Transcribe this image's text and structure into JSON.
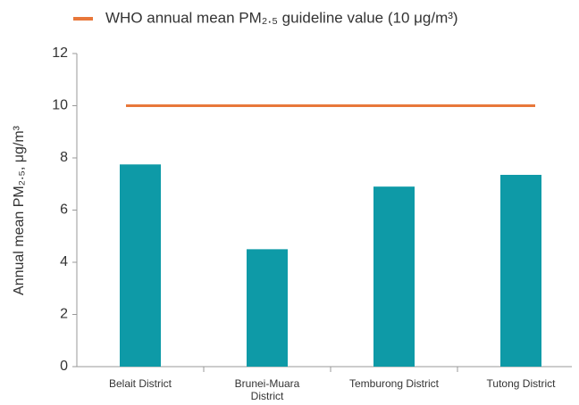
{
  "chart_data": {
    "type": "bar",
    "y_label": "Annual mean PM₂.₅, μg/m³",
    "categories": [
      "Belait District",
      "Brunei-Muara District",
      "Temburong District",
      "Tutong District"
    ],
    "values": [
      7.75,
      4.5,
      6.9,
      7.35
    ],
    "color": "#0e9aa7",
    "reference_line": {
      "name": "WHO annual mean PM₂.₅ guideline value (10 μg/m³)",
      "value": 10,
      "color": "#e8773a"
    },
    "ylim": [
      0,
      12
    ],
    "yticks": [
      0,
      2,
      4,
      6,
      8,
      10,
      12
    ]
  }
}
